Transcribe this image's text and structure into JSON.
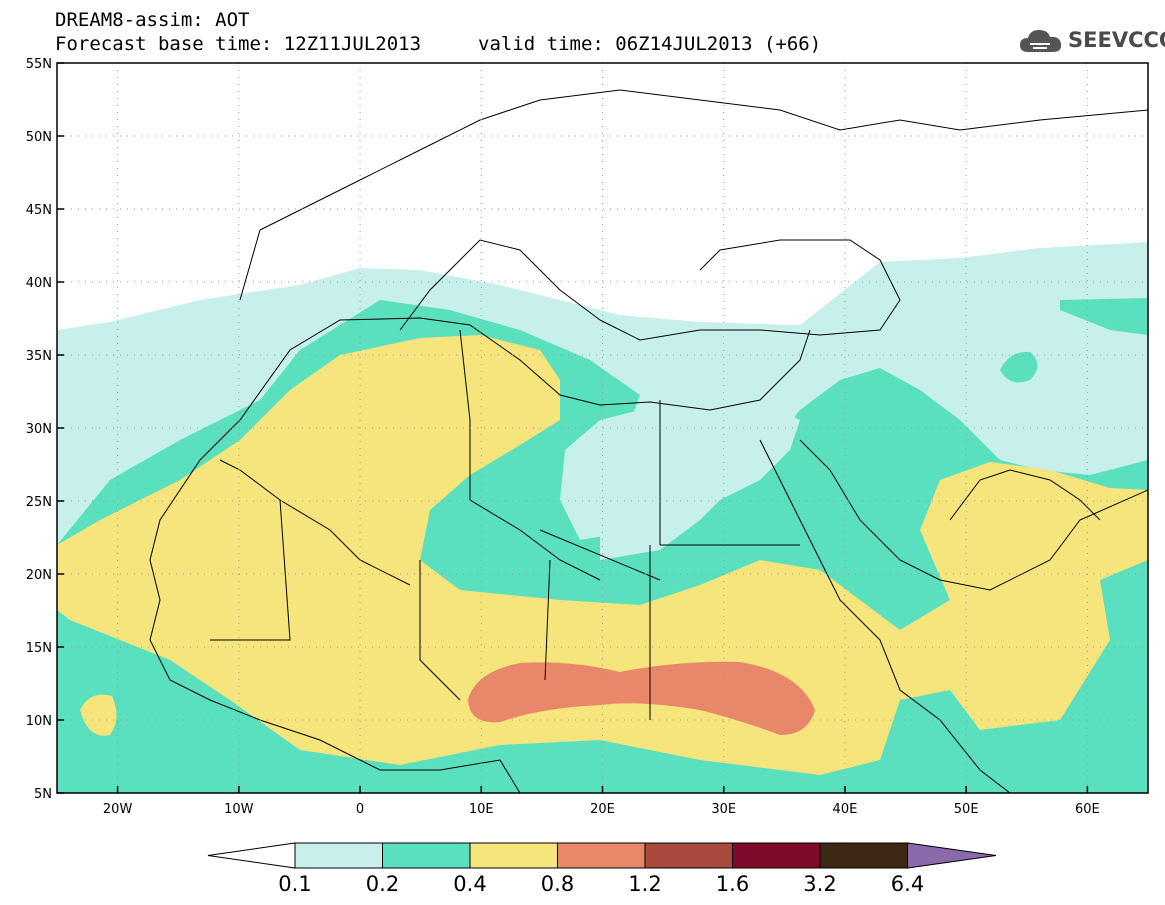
{
  "header": {
    "line1": "DREAM8-assim: AOT",
    "line2": "Forecast base time: 12Z11JUL2013",
    "line3": "valid time: 06Z14JUL2013 (+66)"
  },
  "logo": {
    "text": "SEEVCCC",
    "icon": "cloud-icon"
  },
  "map": {
    "lat_labels": [
      "55N",
      "50N",
      "45N",
      "40N",
      "35N",
      "30N",
      "25N",
      "20N",
      "15N",
      "10N",
      "5N"
    ],
    "lon_labels": [
      "20W",
      "10W",
      "0",
      "10E",
      "20E",
      "30E",
      "40E",
      "50E",
      "60E"
    ],
    "extent": {
      "lon": [
        -25,
        65
      ],
      "lat": [
        5,
        55
      ]
    }
  },
  "colorbar": {
    "levels": [
      "0.1",
      "0.2",
      "0.4",
      "0.8",
      "1.2",
      "1.6",
      "3.2",
      "6.4"
    ],
    "colors": [
      "#ffffff",
      "#c7f0ea",
      "#5be0bf",
      "#f5e57c",
      "#e8876a",
      "#a94b3c",
      "#7f0a2a",
      "#3d2816",
      "#8b6aab"
    ]
  }
}
